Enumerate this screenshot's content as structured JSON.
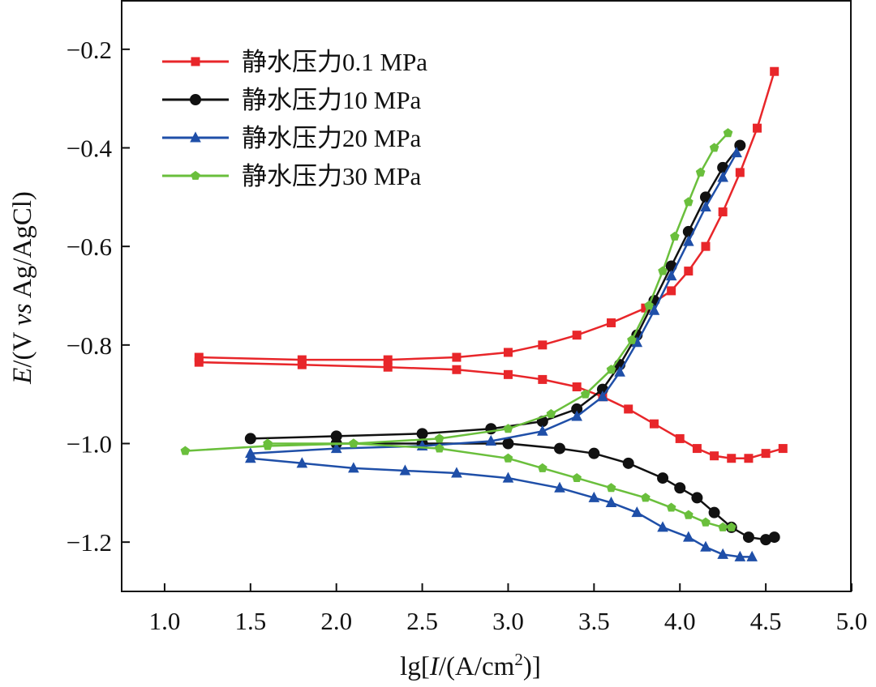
{
  "chart_data": {
    "type": "line",
    "xlabel_parts": {
      "prefix": "lg[",
      "italic": "I",
      "suffix": "/(A/cm",
      "sup": "2",
      "close": ")]"
    },
    "ylabel_parts": {
      "italic1": "E",
      "mid": "/(V ",
      "italic2": "vs",
      "suffix": " Ag/AgCl)"
    },
    "xlim": [
      0.75,
      5.0
    ],
    "ylim": [
      -1.3,
      -0.1
    ],
    "x_ticks": [
      "1.0",
      "1.5",
      "2.0",
      "2.5",
      "3.0",
      "3.5",
      "4.0",
      "4.5",
      "5.0"
    ],
    "x_tick_values": [
      1.0,
      1.5,
      2.0,
      2.5,
      3.0,
      3.5,
      4.0,
      4.5,
      5.0
    ],
    "y_ticks": [
      "−0.2",
      "−0.4",
      "−0.6",
      "−0.8",
      "−1.0",
      "−1.2"
    ],
    "y_tick_values": [
      -0.2,
      -0.4,
      -0.6,
      -0.8,
      -1.0,
      -1.2
    ],
    "legend_position": "top-left",
    "grid": false,
    "series": [
      {
        "name": "静水压力0.1 MPa",
        "color": "#e8262a",
        "marker": "square",
        "x": [
          1.2,
          1.8,
          2.3,
          2.7,
          3.0,
          3.2,
          3.4,
          3.6,
          3.8,
          3.95,
          4.05,
          4.15,
          4.25,
          4.35,
          4.45,
          4.55,
          null,
          1.2,
          1.8,
          2.3,
          2.7,
          3.0,
          3.2,
          3.4,
          3.55,
          3.7,
          3.85,
          4.0,
          4.1,
          4.2,
          4.3,
          4.4,
          4.5,
          4.6
        ],
        "y": [
          -0.825,
          -0.83,
          -0.83,
          -0.825,
          -0.815,
          -0.8,
          -0.78,
          -0.755,
          -0.725,
          -0.69,
          -0.65,
          -0.6,
          -0.53,
          -0.45,
          -0.36,
          -0.245,
          null,
          -0.835,
          -0.84,
          -0.845,
          -0.85,
          -0.86,
          -0.87,
          -0.885,
          -0.905,
          -0.93,
          -0.96,
          -0.99,
          -1.01,
          -1.025,
          -1.03,
          -1.03,
          -1.02,
          -1.01
        ]
      },
      {
        "name": "静水压力10 MPa",
        "color": "#111111",
        "marker": "circle",
        "x": [
          1.5,
          2.0,
          2.5,
          2.9,
          3.2,
          3.4,
          3.55,
          3.65,
          3.75,
          3.85,
          3.95,
          4.05,
          4.15,
          4.25,
          4.35,
          null,
          2.0,
          2.5,
          3.0,
          3.3,
          3.5,
          3.7,
          3.9,
          4.0,
          4.1,
          4.2,
          4.3,
          4.4,
          4.5,
          4.55
        ],
        "y": [
          -0.99,
          -0.985,
          -0.98,
          -0.97,
          -0.955,
          -0.93,
          -0.89,
          -0.84,
          -0.78,
          -0.71,
          -0.64,
          -0.57,
          -0.5,
          -0.44,
          -0.395,
          null,
          -1.0,
          -1.0,
          -1.0,
          -1.01,
          -1.02,
          -1.04,
          -1.07,
          -1.09,
          -1.11,
          -1.14,
          -1.17,
          -1.19,
          -1.195,
          -1.19
        ]
      },
      {
        "name": "静水压力20 MPa",
        "color": "#1f4fa8",
        "marker": "triangle",
        "x": [
          1.5,
          2.0,
          2.5,
          2.9,
          3.2,
          3.4,
          3.55,
          3.65,
          3.75,
          3.85,
          3.95,
          4.05,
          4.15,
          4.25,
          4.33,
          null,
          1.5,
          1.8,
          2.1,
          2.4,
          2.7,
          3.0,
          3.3,
          3.5,
          3.6,
          3.75,
          3.9,
          4.05,
          4.15,
          4.25,
          4.35,
          4.42
        ],
        "y": [
          -1.02,
          -1.01,
          -1.005,
          -0.995,
          -0.975,
          -0.945,
          -0.905,
          -0.855,
          -0.795,
          -0.73,
          -0.66,
          -0.59,
          -0.52,
          -0.46,
          -0.41,
          null,
          -1.03,
          -1.04,
          -1.05,
          -1.055,
          -1.06,
          -1.07,
          -1.09,
          -1.11,
          -1.12,
          -1.14,
          -1.17,
          -1.19,
          -1.21,
          -1.225,
          -1.23,
          -1.23
        ]
      },
      {
        "name": "静水压力30 MPa",
        "color": "#6abf3c",
        "marker": "pentagon",
        "x": [
          1.12,
          1.6,
          2.1,
          2.6,
          3.0,
          3.25,
          3.45,
          3.6,
          3.72,
          3.82,
          3.9,
          3.97,
          4.05,
          4.12,
          4.2,
          4.28,
          null,
          1.6,
          2.1,
          2.6,
          3.0,
          3.2,
          3.4,
          3.6,
          3.8,
          3.95,
          4.05,
          4.15,
          4.25,
          4.3
        ],
        "y": [
          -1.015,
          -1.005,
          -1.0,
          -0.99,
          -0.97,
          -0.94,
          -0.9,
          -0.85,
          -0.79,
          -0.72,
          -0.65,
          -0.58,
          -0.51,
          -0.45,
          -0.4,
          -0.37,
          null,
          -1.0,
          -1.0,
          -1.01,
          -1.03,
          -1.05,
          -1.07,
          -1.09,
          -1.11,
          -1.13,
          -1.145,
          -1.16,
          -1.17,
          -1.17
        ]
      }
    ]
  }
}
